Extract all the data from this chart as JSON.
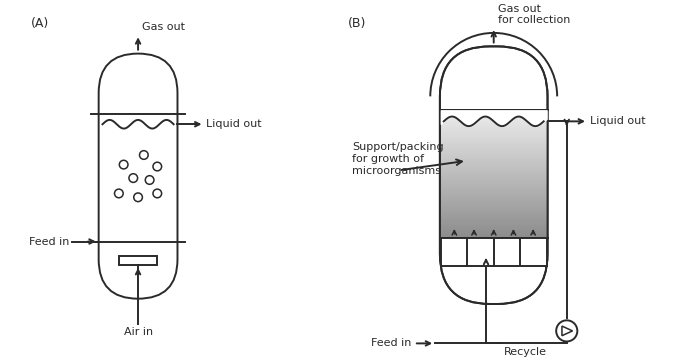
{
  "bg_color": "#ffffff",
  "line_color": "#2a2a2a",
  "font_size": 8.0,
  "A_label": "(A)",
  "B_label": "(B)",
  "A_gas_out": "Gas out",
  "A_liquid_out": "Liquid out",
  "A_feed_in": "Feed in",
  "A_air_in": "Air in",
  "B_gas_out": "Gas out\nfor collection",
  "B_liquid_out": "Liquid out",
  "B_feed_in": "Feed in",
  "B_recycle": "Recycle",
  "B_support": "Support/packing\nfor growth of\nmicroorganisms"
}
